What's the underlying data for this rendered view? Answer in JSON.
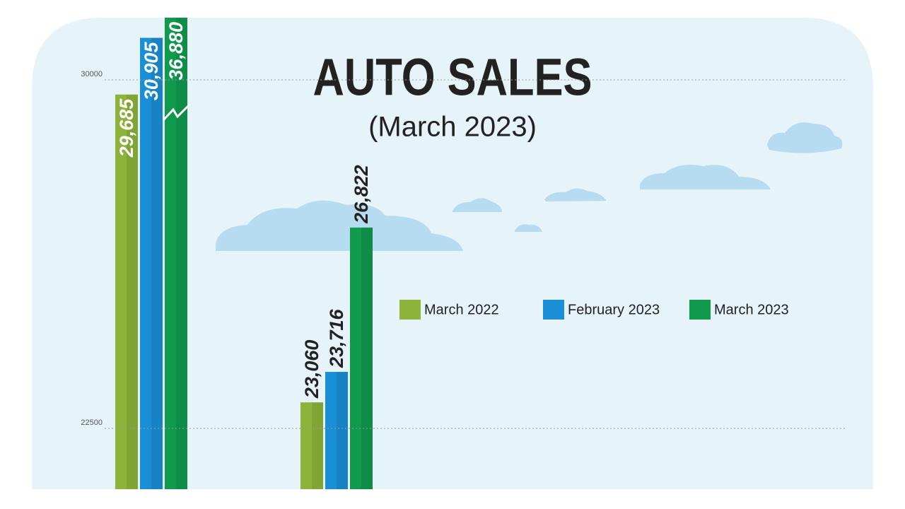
{
  "chart_data": {
    "type": "bar",
    "title": "AUTO SALES",
    "subtitle": "(March 2023)",
    "categories": [
      null,
      null
    ],
    "series": [
      {
        "name": "March 2022",
        "color": "#8db33a",
        "values": [
          29685,
          23060
        ],
        "value_labels": [
          "29,685",
          "23,060"
        ]
      },
      {
        "name": "February 2023",
        "color": "#1a8fd6",
        "values": [
          30905,
          23716
        ],
        "value_labels": [
          "30,905",
          "23,716"
        ]
      },
      {
        "name": "March 2023",
        "color": "#0f9a4e",
        "values": [
          36880,
          26822
        ],
        "value_labels": [
          "36,880",
          "26,822"
        ]
      }
    ],
    "ylim": [
      21191,
      31339
    ],
    "yticks": [
      22500,
      30000
    ],
    "grid": true,
    "legend": "right"
  }
}
